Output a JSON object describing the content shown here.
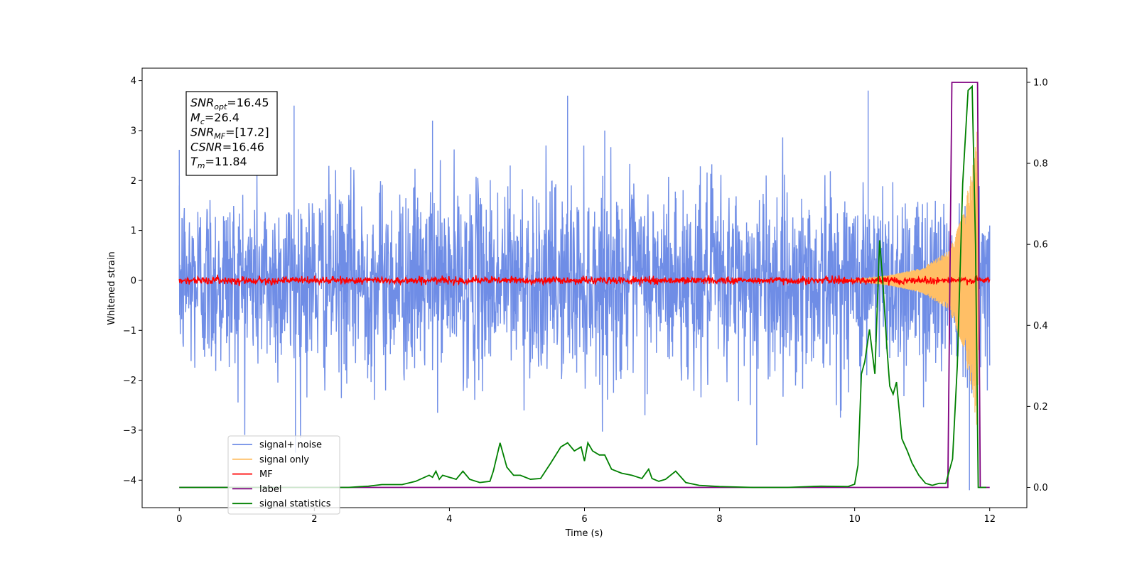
{
  "chart_data": {
    "type": "line",
    "title": "",
    "xlabel": "Time (s)",
    "ylabel": "Whitened strain",
    "xlim": [
      -0.55,
      12.55
    ],
    "ylim": [
      -4.55,
      4.25
    ],
    "y2lim": [
      -0.05,
      1.035
    ],
    "xticks": [
      0,
      2,
      4,
      6,
      8,
      10,
      12
    ],
    "yticks": [
      -4,
      -3,
      -2,
      -1,
      0,
      1,
      2,
      3,
      4
    ],
    "y2ticks": [
      0.0,
      0.2,
      0.4,
      0.6,
      0.8,
      1.0
    ],
    "xtick_labels": [
      "0",
      "2",
      "4",
      "6",
      "8",
      "10",
      "12"
    ],
    "ytick_labels": [
      "−4",
      "−3",
      "−2",
      "−1",
      "0",
      "1",
      "2",
      "3",
      "4"
    ],
    "y2tick_labels": [
      "0.0",
      "0.2",
      "0.4",
      "0.6",
      "0.8",
      "1.0"
    ],
    "grid": false,
    "legend_placement": "lower-left",
    "legend_entries": [
      {
        "label": "signal+ noise",
        "color": "#6f8de6"
      },
      {
        "label": "signal only",
        "color": "#ffbf66"
      },
      {
        "label": "MF",
        "color": "#ff0000"
      },
      {
        "label": "label",
        "color": "#800080"
      },
      {
        "label": "signal statistics",
        "color": "#008000"
      }
    ],
    "annotation": [
      {
        "base": "SNR",
        "sub": "opt",
        "value": "=16.45"
      },
      {
        "base": "M",
        "sub": "c",
        "value": "=26.4"
      },
      {
        "base": "SNR",
        "sub": "MF",
        "value": "=[17.2]"
      },
      {
        "base": "CSNR",
        "sub": "",
        "value": "=16.46"
      },
      {
        "base": "T",
        "sub": "m",
        "value": "=11.84"
      }
    ],
    "series": [
      {
        "name": "signal+ noise",
        "axis": "left",
        "color": "#6f8de6",
        "description": "whitened noise, roughly ±2 with spikes to ±3.8, t from 0 to 12",
        "peaks": [
          [
            0.0,
            1.9
          ],
          [
            1.7,
            3.5
          ],
          [
            1.72,
            -3.45
          ],
          [
            3.75,
            3.2
          ],
          [
            4.9,
            2.3
          ],
          [
            5.75,
            3.7
          ],
          [
            6.3,
            3.0
          ],
          [
            8.55,
            -3.3
          ],
          [
            10.2,
            3.8
          ],
          [
            11.7,
            -4.2
          ],
          [
            11.75,
            2.0
          ],
          [
            12.0,
            1.1
          ]
        ]
      },
      {
        "name": "signal only",
        "axis": "left",
        "color": "#ffbf66",
        "description": "chirp waveform growing from 0 at t≈10 to ±3.1 peak near t=11.82, ending at 11.84",
        "peaks": [
          [
            10.0,
            0.02
          ],
          [
            10.5,
            0.1
          ],
          [
            11.0,
            0.25
          ],
          [
            11.4,
            0.6
          ],
          [
            11.6,
            1.3
          ],
          [
            11.75,
            2.3
          ],
          [
            11.82,
            3.1
          ],
          [
            11.84,
            0.0
          ]
        ]
      },
      {
        "name": "MF",
        "axis": "left",
        "color": "#ff0000",
        "description": "matched filter output, small noise around 0 with amplitude ~0.1",
        "amplitude": 0.08
      },
      {
        "name": "label",
        "axis": "right",
        "color": "#800080",
        "x": [
          0,
          11.38,
          11.44,
          11.82,
          11.86,
          12.0
        ],
        "y": [
          0,
          0,
          1,
          1,
          0,
          0
        ]
      },
      {
        "name": "signal statistics",
        "axis": "right",
        "color": "#008000",
        "x": [
          0,
          0.5,
          1.0,
          1.5,
          2.0,
          2.5,
          2.8,
          3.0,
          3.3,
          3.5,
          3.7,
          3.75,
          3.8,
          3.85,
          3.9,
          4.0,
          4.1,
          4.2,
          4.3,
          4.45,
          4.6,
          4.65,
          4.75,
          4.85,
          4.95,
          5.05,
          5.2,
          5.35,
          5.5,
          5.65,
          5.75,
          5.85,
          5.95,
          6.0,
          6.05,
          6.12,
          6.22,
          6.3,
          6.4,
          6.55,
          6.7,
          6.85,
          6.95,
          7.0,
          7.1,
          7.2,
          7.35,
          7.5,
          7.7,
          8.0,
          8.5,
          9.0,
          9.5,
          9.9,
          10.0,
          10.05,
          10.1,
          10.15,
          10.22,
          10.3,
          10.37,
          10.42,
          10.48,
          10.52,
          10.57,
          10.62,
          10.7,
          10.78,
          10.85,
          10.95,
          11.05,
          11.15,
          11.25,
          11.35,
          11.45,
          11.52,
          11.6,
          11.68,
          11.74,
          11.79,
          11.83,
          11.87,
          11.95
        ],
        "y": [
          0.0,
          0.0,
          0.0,
          0.0,
          0.0,
          0.0,
          0.003,
          0.007,
          0.007,
          0.015,
          0.03,
          0.025,
          0.04,
          0.02,
          0.03,
          0.025,
          0.02,
          0.04,
          0.02,
          0.012,
          0.015,
          0.04,
          0.11,
          0.05,
          0.03,
          0.03,
          0.02,
          0.022,
          0.06,
          0.1,
          0.11,
          0.09,
          0.1,
          0.065,
          0.11,
          0.09,
          0.08,
          0.08,
          0.045,
          0.035,
          0.03,
          0.022,
          0.045,
          0.022,
          0.015,
          0.02,
          0.04,
          0.012,
          0.005,
          0.002,
          0.0,
          0.0,
          0.003,
          0.002,
          0.008,
          0.055,
          0.28,
          0.31,
          0.39,
          0.28,
          0.61,
          0.5,
          0.34,
          0.25,
          0.23,
          0.26,
          0.12,
          0.09,
          0.06,
          0.03,
          0.01,
          0.005,
          0.01,
          0.01,
          0.07,
          0.3,
          0.75,
          0.98,
          0.99,
          0.6,
          0.0,
          0.0,
          0.0
        ]
      }
    ]
  }
}
